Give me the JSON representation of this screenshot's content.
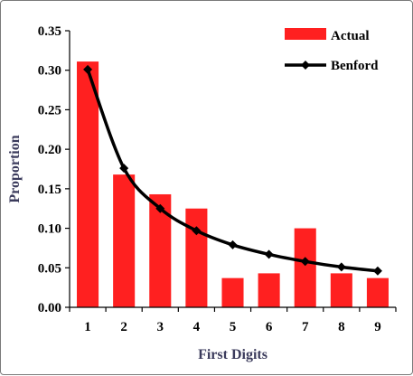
{
  "chart_data": {
    "type": "bar",
    "categories": [
      "1",
      "2",
      "3",
      "4",
      "5",
      "6",
      "7",
      "8",
      "9"
    ],
    "series": [
      {
        "name": "Actual",
        "type": "bar",
        "color": "#ff2020",
        "values": [
          0.311,
          0.168,
          0.143,
          0.125,
          0.037,
          0.043,
          0.1,
          0.043,
          0.037
        ]
      },
      {
        "name": "Benford",
        "type": "line",
        "color": "#000000",
        "marker": "diamond",
        "values": [
          0.301,
          0.176,
          0.125,
          0.097,
          0.079,
          0.067,
          0.058,
          0.051,
          0.046
        ]
      }
    ],
    "xlabel": "First Digits",
    "ylabel": "Proportion",
    "ylim": [
      0,
      0.35
    ],
    "yticks": [
      "0.00",
      "0.05",
      "0.10",
      "0.15",
      "0.20",
      "0.25",
      "0.30",
      "0.35"
    ],
    "grid": false,
    "legend": "top-right"
  }
}
